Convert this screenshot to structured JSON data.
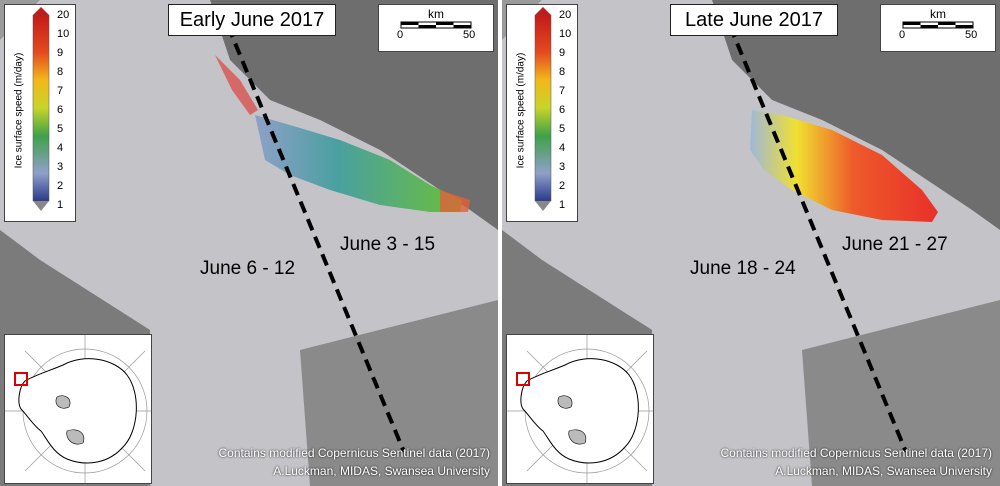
{
  "panels": [
    {
      "title": "Early June 2017",
      "label_left": "June 6 - 12",
      "label_right": "June 3 - 15"
    },
    {
      "title": "Late June 2017",
      "label_left": "June 18 - 24",
      "label_right": "June 21 - 27"
    }
  ],
  "scale_bar": {
    "unit": "km",
    "start": "0",
    "end": "50"
  },
  "colorbar": {
    "label": "Ice surface speed (m/day)",
    "ticks": [
      "20",
      "10",
      "9",
      "8",
      "7",
      "6",
      "5",
      "4",
      "3",
      "2",
      "1"
    ],
    "colors": [
      "#2b3a8c",
      "#8fa0c8",
      "#3fa14a",
      "#c8d42a",
      "#f2b81c",
      "#e34a1e",
      "#c41a1a"
    ]
  },
  "credits": {
    "line1": "Contains modified Copernicus Sentinel data (2017)",
    "line2": "A.Luckman, MIDAS, Swansea University"
  },
  "colors": {
    "background_gray": "#a9a9a9",
    "ice_shelf": "#c2c2c6",
    "early_flow": "#5a9c6a",
    "late_flow": "#e8382a"
  }
}
